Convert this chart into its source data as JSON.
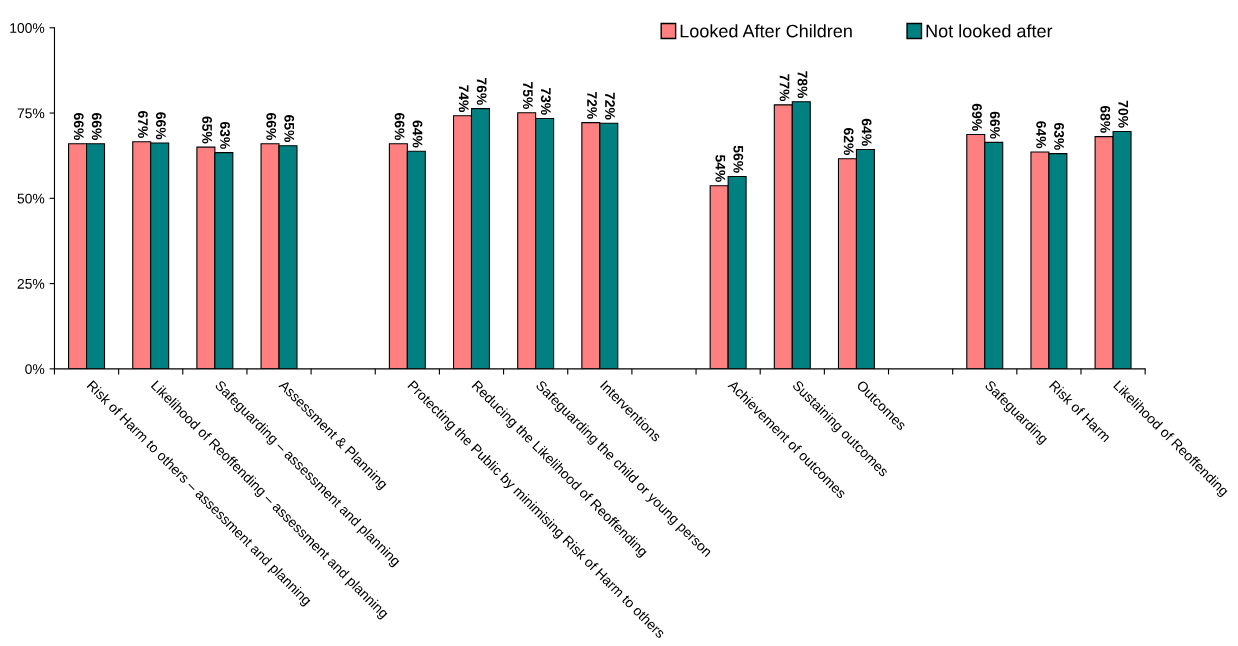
{
  "chart_data": {
    "type": "bar",
    "categories": [
      "Risk of Harm to others – assessment and planning",
      "Likelihood of Reoffending – assessment and planning",
      "Safeguarding – assessment and planning",
      "Assessment & Planning",
      null,
      "Protecting the Public by minimising Risk of Harm to others",
      "Reducing the Likelihood of Reoffending",
      "Safeguarding the child or young person",
      "Interventions",
      null,
      "Achievement of outcomes",
      "Sustaining outcomes",
      "Outcomes",
      null,
      "Safeguarding",
      "Risk of Harm",
      "Likelihood of Reoffending"
    ],
    "series": [
      {
        "name": "Looked After Children",
        "color": "#ff8080",
        "values": [
          66.0,
          66.6,
          65.0,
          66.0,
          null,
          66.0,
          74.2,
          75.1,
          72.2,
          null,
          53.7,
          77.4,
          61.6,
          null,
          68.7,
          63.6,
          68.1
        ],
        "value_labels": [
          "66%",
          "67%",
          "65%",
          "66%",
          null,
          "66%",
          "74%",
          "75%",
          "72%",
          null,
          "54%",
          "77%",
          "62%",
          null,
          "69%",
          "64%",
          "68%"
        ]
      },
      {
        "name": "Not looked after",
        "color": "#008080",
        "values": [
          66.0,
          66.2,
          63.4,
          65.4,
          null,
          63.8,
          76.3,
          73.4,
          72.0,
          null,
          56.4,
          78.3,
          64.3,
          null,
          66.4,
          63.1,
          69.6
        ],
        "value_labels": [
          "66%",
          "66%",
          "63%",
          "65%",
          null,
          "64%",
          "76%",
          "73%",
          "72%",
          null,
          "56%",
          "78%",
          "64%",
          null,
          "66%",
          "63%",
          "70%"
        ]
      }
    ],
    "ylim": [
      0,
      100
    ],
    "yticks": [
      {
        "value": 0,
        "label": "0%"
      },
      {
        "value": 25,
        "label": "25%"
      },
      {
        "value": 50,
        "label": "50%"
      },
      {
        "value": 75,
        "label": "75%"
      },
      {
        "value": 100,
        "label": "100%"
      }
    ],
    "grid": false,
    "legend": "top right"
  }
}
